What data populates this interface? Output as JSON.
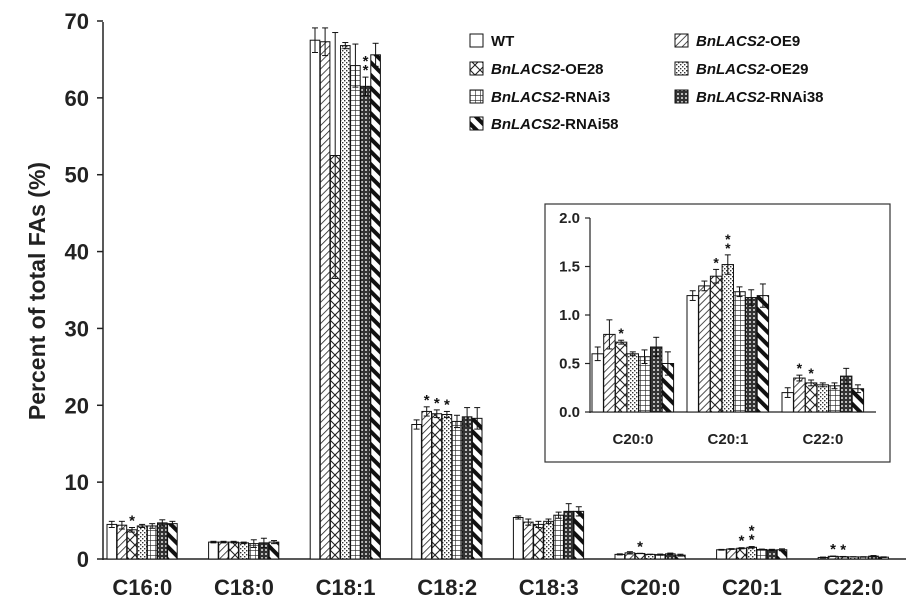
{
  "chart_data": {
    "type": "bar",
    "ylabel": "Percent of total FAs (%)",
    "ylim": [
      0,
      70
    ],
    "yticks": [
      0,
      10,
      20,
      30,
      40,
      50,
      60,
      70
    ],
    "categories": [
      "C16:0",
      "C18:0",
      "C18:1",
      "C18:2",
      "C18:3",
      "C20:0",
      "C20:1",
      "C22:0"
    ],
    "series": [
      {
        "name_italic": "",
        "name_rest": "WT",
        "pattern": "pat-wt",
        "values": [
          4.5,
          2.2,
          67.5,
          17.5,
          5.4,
          0.6,
          1.2,
          0.2
        ],
        "errors": [
          0.4,
          0.1,
          1.6,
          0.6,
          0.2,
          0.07,
          0.05,
          0.05
        ],
        "sig": [
          0,
          0,
          0,
          0,
          0,
          0,
          0,
          0
        ]
      },
      {
        "name_italic": "BnLACS2",
        "name_rest": "-OE9",
        "pattern": "pat-oe9",
        "values": [
          4.4,
          2.2,
          67.3,
          19.2,
          4.8,
          0.8,
          1.3,
          0.35
        ],
        "errors": [
          0.5,
          0.1,
          1.8,
          0.6,
          0.4,
          0.15,
          0.05,
          0.03
        ],
        "sig": [
          0,
          0,
          0,
          1,
          0,
          0,
          0,
          1
        ]
      },
      {
        "name_italic": "BnLACS2",
        "name_rest": "-OE28",
        "pattern": "pat-oe28",
        "values": [
          3.8,
          2.2,
          52.5,
          18.9,
          4.5,
          0.72,
          1.4,
          0.3
        ],
        "errors": [
          0.3,
          0.1,
          16.0,
          0.5,
          0.4,
          0.02,
          0.07,
          0.03
        ],
        "sig": [
          1,
          0,
          0,
          1,
          0,
          1,
          1,
          1
        ]
      },
      {
        "name_italic": "BnLACS2",
        "name_rest": "-OE29",
        "pattern": "pat-oe29",
        "values": [
          4.3,
          2.1,
          66.8,
          18.8,
          4.9,
          0.6,
          1.52,
          0.28
        ],
        "errors": [
          0.2,
          0.1,
          0.4,
          0.4,
          0.3,
          0.02,
          0.1,
          0.02
        ],
        "sig": [
          0,
          0,
          0,
          1,
          0,
          0,
          2,
          0
        ]
      },
      {
        "name_italic": "BnLACS2",
        "name_rest": "-RNAi3",
        "pattern": "pat-rnai3",
        "values": [
          4.3,
          2.0,
          64.2,
          17.9,
          5.7,
          0.57,
          1.24,
          0.27
        ],
        "errors": [
          0.3,
          0.5,
          2.8,
          0.8,
          0.4,
          0.07,
          0.05,
          0.03
        ],
        "sig": [
          0,
          0,
          0,
          0,
          0,
          0,
          0,
          0
        ]
      },
      {
        "name_italic": "BnLACS2",
        "name_rest": "-RNAi38",
        "pattern": "pat-rnai38",
        "values": [
          4.7,
          2.1,
          61.5,
          18.5,
          6.2,
          0.67,
          1.18,
          0.37
        ],
        "errors": [
          0.4,
          0.6,
          1.2,
          1.2,
          1.0,
          0.1,
          0.08,
          0.08
        ],
        "sig": [
          0,
          0,
          2,
          0,
          0,
          0,
          0,
          0
        ]
      },
      {
        "name_italic": "BnLACS2",
        "name_rest": "-RNAi58",
        "pattern": "pat-rnai58",
        "values": [
          4.6,
          2.2,
          65.6,
          18.3,
          6.2,
          0.5,
          1.2,
          0.24
        ],
        "errors": [
          0.3,
          0.2,
          1.5,
          1.4,
          0.6,
          0.12,
          0.12,
          0.04
        ],
        "sig": [
          0,
          0,
          0,
          0,
          0,
          0,
          0,
          0
        ]
      }
    ],
    "inset": {
      "type": "bar",
      "categories": [
        "C20:0",
        "C20:1",
        "C22:0"
      ],
      "ylim": [
        0,
        2.0
      ],
      "yticks": [
        "0.0",
        "0.5",
        "1.0",
        "1.5",
        "2.0"
      ]
    },
    "legend_position": "top-right"
  }
}
